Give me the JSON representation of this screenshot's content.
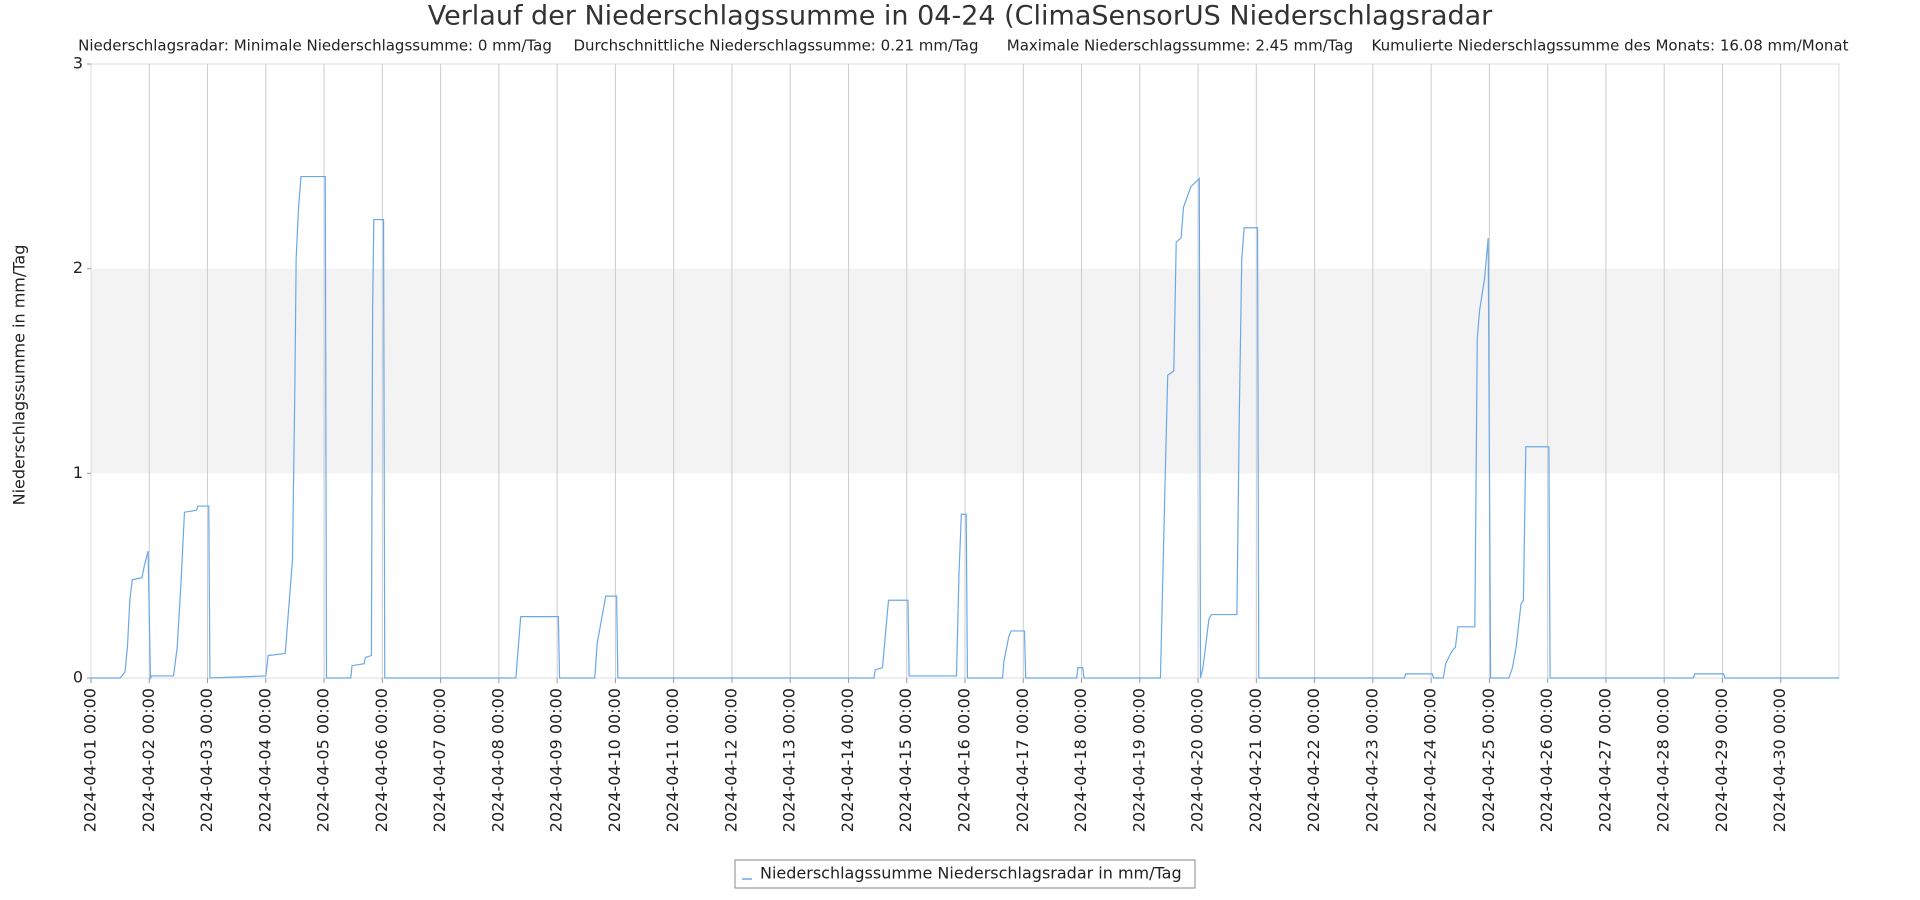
{
  "chart_data": {
    "type": "line",
    "title": "Verlauf der Niederschlagssumme in 04-24 (ClimaSensorUS Niederschlagsradar",
    "subtitle": [
      "Niederschlagsradar: Minimale Niederschlagssumme: 0 mm/Tag",
      "Durchschnittliche Niederschlagssumme: 0.21 mm/Tag",
      "Maximale Niederschlagssumme: 2.45 mm/Tag",
      "Kumulierte Niederschlagssumme des Monats: 16.08 mm/Monat"
    ],
    "y_label": "Niederschlagssumme in mm/Tag",
    "ylim": [
      0,
      3
    ],
    "yticks": [
      0,
      1,
      2,
      3
    ],
    "xlim": [
      "2024-04-01 00:00",
      "2024-05-01 00:00"
    ],
    "xticks": [
      "2024-04-01 00:00",
      "2024-04-02 00:00",
      "2024-04-03 00:00",
      "2024-04-04 00:00",
      "2024-04-05 00:00",
      "2024-04-06 00:00",
      "2024-04-07 00:00",
      "2024-04-08 00:00",
      "2024-04-09 00:00",
      "2024-04-10 00:00",
      "2024-04-11 00:00",
      "2024-04-12 00:00",
      "2024-04-13 00:00",
      "2024-04-14 00:00",
      "2024-04-15 00:00",
      "2024-04-16 00:00",
      "2024-04-17 00:00",
      "2024-04-18 00:00",
      "2024-04-19 00:00",
      "2024-04-20 00:00",
      "2024-04-21 00:00",
      "2024-04-22 00:00",
      "2024-04-23 00:00",
      "2024-04-24 00:00",
      "2024-04-25 00:00",
      "2024-04-26 00:00",
      "2024-04-27 00:00",
      "2024-04-28 00:00",
      "2024-04-29 00:00",
      "2024-04-30 00:00"
    ],
    "grid": true,
    "bands": [
      {
        "from": 1,
        "to": 2,
        "color": "#f3f3f3"
      }
    ],
    "x": [
      "2024-04-01 00:00",
      "2024-04-01 12:00",
      "2024-04-01 14:00",
      "2024-04-01 15:00",
      "2024-04-01 16:00",
      "2024-04-01 17:00",
      "2024-04-01 21:00",
      "2024-04-01 22:00",
      "2024-04-01 23:30",
      "2024-04-02 00:30",
      "2024-04-02 01:00",
      "2024-04-02 10:00",
      "2024-04-02 11:30",
      "2024-04-02 13:00",
      "2024-04-02 14:30",
      "2024-04-02 19:30",
      "2024-04-02 20:00",
      "2024-04-03 00:30",
      "2024-04-03 01:00",
      "2024-04-04 00:00",
      "2024-04-04 01:00",
      "2024-04-04 08:00",
      "2024-04-04 09:30",
      "2024-04-04 11:00",
      "2024-04-04 12:00",
      "2024-04-04 12:30",
      "2024-04-04 13:30",
      "2024-04-04 14:30",
      "2024-04-05 00:30",
      "2024-04-05 01:00",
      "2024-04-05 11:00",
      "2024-04-05 11:30",
      "2024-04-05 16:30",
      "2024-04-05 17:00",
      "2024-04-05 19:30",
      "2024-04-05 20:00",
      "2024-04-05 20:30",
      "2024-04-06 00:30",
      "2024-04-06 01:00",
      "2024-04-08 07:00",
      "2024-04-08 09:00",
      "2024-04-09 00:30",
      "2024-04-09 01:00",
      "2024-04-09 15:30",
      "2024-04-09 16:30",
      "2024-04-09 18:30",
      "2024-04-09 20:00",
      "2024-04-10 00:30",
      "2024-04-10 01:00",
      "2024-04-14 10:30",
      "2024-04-14 11:00",
      "2024-04-14 14:00",
      "2024-04-14 15:30",
      "2024-04-14 16:30",
      "2024-04-15 00:30",
      "2024-04-15 01:00",
      "2024-04-15 20:30",
      "2024-04-15 21:30",
      "2024-04-15 22:30",
      "2024-04-16 00:30",
      "2024-04-16 01:00",
      "2024-04-16 15:30",
      "2024-04-16 16:00",
      "2024-04-16 18:00",
      "2024-04-16 19:00",
      "2024-04-17 00:30",
      "2024-04-17 01:00",
      "2024-04-17 22:00",
      "2024-04-17 22:30",
      "2024-04-18 00:30",
      "2024-04-18 01:00",
      "2024-04-19 08:30",
      "2024-04-19 09:30",
      "2024-04-19 10:30",
      "2024-04-19 11:30",
      "2024-04-19 14:00",
      "2024-04-19 15:00",
      "2024-04-19 17:00",
      "2024-04-19 18:00",
      "2024-04-19 21:00",
      "2024-04-20 00:30",
      "2024-04-20 01:00",
      "2024-04-20 02:00",
      "2024-04-20 04:30",
      "2024-04-20 05:30",
      "2024-04-20 16:00",
      "2024-04-20 17:00",
      "2024-04-20 18:00",
      "2024-04-20 19:00",
      "2024-04-21 00:30",
      "2024-04-21 01:00",
      "2024-04-23 13:00",
      "2024-04-23 13:30",
      "2024-04-24 00:30",
      "2024-04-24 01:00",
      "2024-04-24 05:00",
      "2024-04-24 06:00",
      "2024-04-24 08:30",
      "2024-04-24 10:00",
      "2024-04-24 11:00",
      "2024-04-24 18:00",
      "2024-04-24 19:00",
      "2024-04-24 20:00",
      "2024-04-24 22:00",
      "2024-04-24 23:30",
      "2024-04-25 00:30",
      "2024-04-25 08:00",
      "2024-04-25 09:30",
      "2024-04-25 11:00",
      "2024-04-25 13:00",
      "2024-04-25 14:00",
      "2024-04-25 15:00",
      "2024-04-26 00:30",
      "2024-04-26 01:00",
      "2024-04-28 12:00",
      "2024-04-28 12:30",
      "2024-04-29 00:30",
      "2024-04-29 01:00",
      "2024-05-01 00:00"
    ],
    "series": [
      {
        "name": "Niederschlagssumme Niederschlagsradar in mm/Tag",
        "color": "#6aa9e9",
        "values": [
          0,
          0,
          0.03,
          0.15,
          0.38,
          0.48,
          0.49,
          0.55,
          0.62,
          0,
          0.01,
          0.01,
          0.15,
          0.45,
          0.81,
          0.82,
          0.84,
          0.84,
          0,
          0.01,
          0.11,
          0.12,
          0.35,
          0.58,
          1.45,
          2.05,
          2.3,
          2.45,
          2.45,
          0,
          0,
          0.06,
          0.07,
          0.1,
          0.11,
          1.8,
          2.24,
          2.24,
          0,
          0,
          0.3,
          0.3,
          0,
          0,
          0.17,
          0.3,
          0.4,
          0.4,
          0,
          0,
          0.04,
          0.05,
          0.25,
          0.38,
          0.38,
          0.01,
          0.01,
          0.5,
          0.8,
          0.8,
          0,
          0,
          0.08,
          0.2,
          0.23,
          0.23,
          0,
          0,
          0.05,
          0.05,
          0,
          0,
          0.5,
          1.0,
          1.48,
          1.5,
          2.13,
          2.15,
          2.3,
          2.4,
          2.44,
          0,
          0.05,
          0.29,
          0.31,
          0.31,
          1.3,
          2.05,
          2.2,
          2.2,
          0,
          0,
          0.02,
          0.02,
          0,
          0,
          0.07,
          0.13,
          0.15,
          0.25,
          0.25,
          1.66,
          1.8,
          1.95,
          2.15,
          0,
          0,
          0.05,
          0.15,
          0.36,
          0.38,
          1.13,
          1.13,
          0,
          0,
          0.02,
          0.02,
          0,
          0
        ]
      }
    ]
  }
}
